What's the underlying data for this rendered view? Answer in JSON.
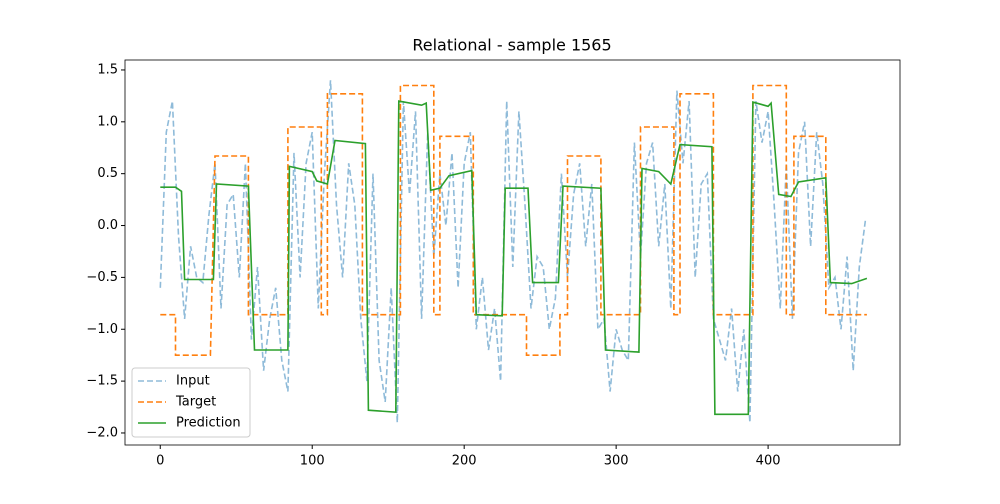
{
  "chart_data": {
    "type": "line",
    "title": "Relational - sample 1565",
    "xlim": [
      -23.2,
      486.8
    ],
    "ylim": [
      -2.116,
      1.596
    ],
    "xticks": [
      0,
      100,
      200,
      300,
      400
    ],
    "yticks": [
      {
        "value": -2.0,
        "label": "−2.0"
      },
      {
        "value": -1.5,
        "label": "−1.5"
      },
      {
        "value": -1.0,
        "label": "−1.0"
      },
      {
        "value": -0.5,
        "label": "−0.5"
      },
      {
        "value": 0.0,
        "label": "0.0"
      },
      0.5,
      {
        "value": 1.0,
        "label": "1.0"
      },
      1.5
    ],
    "legend": "lower left",
    "series": [
      {
        "name": "Input",
        "color": "#1f77b4",
        "style": "dashed",
        "x": [
          0,
          4,
          8,
          12,
          16,
          20,
          24,
          28,
          32,
          36,
          40,
          44,
          48,
          52,
          56,
          60,
          64,
          68,
          72,
          76,
          80,
          84,
          88,
          92,
          96,
          100,
          104,
          108,
          112,
          116,
          120,
          124,
          128,
          132,
          136,
          140,
          144,
          148,
          152,
          156,
          160,
          164,
          168,
          172,
          176,
          180,
          184,
          188,
          192,
          196,
          200,
          204,
          208,
          212,
          216,
          220,
          224,
          228,
          232,
          236,
          240,
          244,
          248,
          252,
          256,
          260,
          264,
          268,
          272,
          276,
          280,
          284,
          288,
          292,
          296,
          300,
          304,
          308,
          312,
          316,
          320,
          324,
          328,
          332,
          336,
          340,
          344,
          348,
          352,
          356,
          360,
          364,
          368,
          372,
          376,
          380,
          384,
          388,
          392,
          396,
          400,
          404,
          408,
          412,
          416,
          420,
          424,
          428,
          432,
          436,
          440,
          444,
          448,
          452,
          456,
          460,
          464
        ],
        "values": [
          -0.6,
          0.9,
          1.2,
          -0.1,
          -0.9,
          -0.2,
          -0.5,
          -0.55,
          0.1,
          0.6,
          -0.8,
          0.2,
          0.3,
          -0.5,
          0.6,
          -1.1,
          -0.4,
          -1.4,
          -0.9,
          -0.6,
          -1.3,
          -1.6,
          0.7,
          -0.5,
          0.6,
          0.9,
          -0.8,
          0.5,
          1.4,
          0.2,
          -0.5,
          0.6,
          0.2,
          -0.9,
          -1.5,
          0.5,
          -1.3,
          -1.7,
          -0.6,
          -1.9,
          1.2,
          0.3,
          1.1,
          -0.9,
          0.9,
          -0.3,
          0.5,
          0.0,
          0.7,
          -0.6,
          0.6,
          0.9,
          -1.0,
          -0.5,
          -1.2,
          -0.8,
          -1.5,
          1.2,
          -0.4,
          1.1,
          0.2,
          -0.8,
          -0.3,
          -0.4,
          -1.0,
          -0.7,
          0.5,
          -0.5,
          0.3,
          0.6,
          -0.2,
          0.4,
          -1.0,
          -0.9,
          -1.6,
          -1.0,
          -1.2,
          -1.3,
          0.8,
          -0.3,
          0.6,
          0.8,
          -0.2,
          0.4,
          -0.8,
          1.3,
          0.6,
          1.2,
          -0.5,
          0.4,
          0.5,
          -0.9,
          -1.1,
          -1.3,
          -0.8,
          -1.6,
          -1.0,
          -1.9,
          1.2,
          0.8,
          1.1,
          0.2,
          -0.8,
          0.6,
          -0.9,
          0.7,
          1.0,
          -0.2,
          0.9,
          0.4,
          -0.6,
          -0.5,
          -1.0,
          -0.3,
          -1.4,
          -0.4,
          0.05
        ]
      },
      {
        "name": "Target",
        "color": "#ff7f0e",
        "style": "dashed",
        "x": [
          0,
          10,
          10,
          33,
          36,
          58,
          58,
          84,
          84,
          106,
          106,
          110,
          110,
          133,
          133,
          158,
          158,
          180,
          180,
          184,
          184,
          206,
          206,
          241,
          241,
          263,
          263,
          268,
          268,
          290,
          290,
          316,
          316,
          338,
          338,
          342,
          342,
          364,
          364,
          390,
          390,
          412,
          412,
          417,
          417,
          438,
          438,
          465
        ],
        "values": [
          -0.86,
          -0.86,
          -1.25,
          -1.25,
          0.67,
          0.67,
          -0.86,
          -0.86,
          0.95,
          0.95,
          -0.86,
          -0.86,
          1.27,
          1.27,
          -0.86,
          -0.86,
          1.35,
          1.35,
          -0.86,
          -0.86,
          0.86,
          0.86,
          -0.86,
          -0.86,
          -1.25,
          -1.25,
          -0.86,
          -0.86,
          0.67,
          0.67,
          -0.86,
          -0.86,
          0.95,
          0.95,
          -0.86,
          -0.86,
          1.27,
          1.27,
          -0.86,
          -0.86,
          1.35,
          1.35,
          -0.86,
          -0.86,
          0.86,
          0.86,
          -0.86,
          -0.86
        ]
      },
      {
        "name": "Prediction",
        "color": "#2ca02c",
        "style": "solid",
        "x": [
          0,
          10,
          14,
          16,
          35,
          37,
          58,
          62,
          84,
          85,
          100,
          103,
          110,
          115,
          135,
          137,
          155,
          157,
          172,
          175,
          178,
          184,
          190,
          205,
          208,
          225,
          227,
          242,
          245,
          262,
          265,
          290,
          293,
          315,
          317,
          328,
          336,
          342,
          363,
          365,
          387,
          390,
          400,
          402,
          407,
          415,
          420,
          438,
          441,
          455,
          465
        ],
        "values": [
          0.37,
          0.37,
          0.33,
          -0.52,
          -0.52,
          0.4,
          0.38,
          -1.2,
          -1.2,
          0.57,
          0.52,
          0.43,
          0.4,
          0.82,
          0.79,
          -1.78,
          -1.8,
          1.2,
          1.16,
          1.18,
          0.34,
          0.36,
          0.48,
          0.53,
          -0.86,
          -0.87,
          0.36,
          0.36,
          -0.55,
          -0.55,
          0.38,
          0.36,
          -1.2,
          -1.22,
          0.55,
          0.52,
          0.4,
          0.78,
          0.76,
          -1.82,
          -1.82,
          1.19,
          1.15,
          1.18,
          0.3,
          0.28,
          0.42,
          0.46,
          -0.55,
          -0.56,
          -0.51
        ]
      }
    ]
  }
}
